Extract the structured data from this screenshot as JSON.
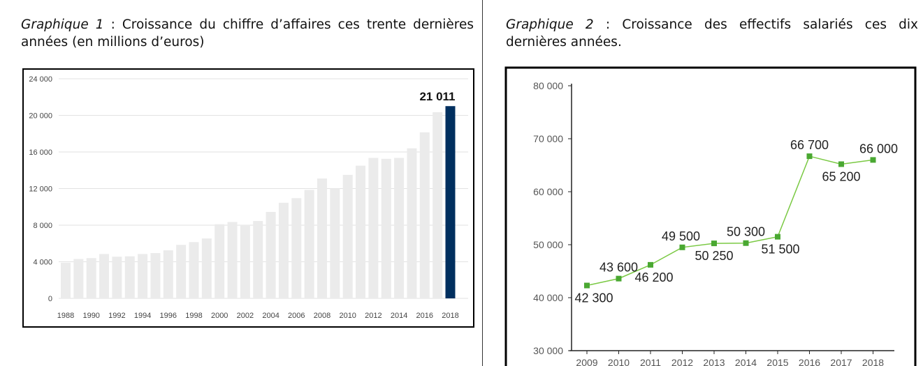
{
  "captions": {
    "chart1": {
      "prefix": "Graphique 1",
      "text": " : Croissance du chiffre d’affaires ces trente dernières années (en millions d’euros)"
    },
    "chart2": {
      "prefix": "Graphique 2",
      "text": " : Croissance des effectifs salariés ces dix dernières années."
    }
  },
  "chart_data": [
    {
      "type": "bar",
      "categories": [
        1988,
        1989,
        1990,
        1991,
        1992,
        1993,
        1994,
        1995,
        1996,
        1997,
        1998,
        1999,
        2000,
        2001,
        2002,
        2003,
        2004,
        2005,
        2006,
        2007,
        2008,
        2009,
        2010,
        2011,
        2012,
        2013,
        2014,
        2015,
        2016,
        2017,
        2018
      ],
      "values": [
        3900,
        4300,
        4400,
        4850,
        4550,
        4600,
        4850,
        4950,
        5250,
        5850,
        6150,
        6550,
        8100,
        8350,
        8050,
        8450,
        9450,
        10450,
        10950,
        11850,
        13100,
        12000,
        13500,
        14500,
        15350,
        15250,
        15350,
        16400,
        18150,
        20350,
        21011
      ],
      "x_tick_labels": [
        "1988",
        "1990",
        "1992",
        "1994",
        "1996",
        "1998",
        "2000",
        "2002",
        "2004",
        "2006",
        "2008",
        "2010",
        "2012",
        "2014",
        "2016",
        "2018"
      ],
      "y_tick_labels": [
        "0",
        "4 000",
        "8 000",
        "12 000",
        "16 000",
        "20 000",
        "24 000"
      ],
      "ylim": [
        0,
        24000
      ],
      "grid": true,
      "highlight": {
        "category": 2018,
        "label": "21 011",
        "color": "#002f5f"
      },
      "bar_color": "#ebebeb"
    },
    {
      "type": "line",
      "x": [
        2009,
        2010,
        2011,
        2012,
        2013,
        2014,
        2015,
        2016,
        2017,
        2018
      ],
      "values": [
        42300,
        43600,
        46200,
        49500,
        50250,
        50300,
        51500,
        66700,
        65200,
        66000
      ],
      "data_labels": [
        "42 300",
        "43 600",
        "46 200",
        "49 500",
        "50 250",
        "50 300",
        "51 500",
        "66 700",
        "65 200",
        "66 000"
      ],
      "x_tick_labels": [
        "2009",
        "2010",
        "2011",
        "2012",
        "2013",
        "2014",
        "2015",
        "2016",
        "2017",
        "2018"
      ],
      "y_tick_labels": [
        "30 000",
        "40 000",
        "50 000",
        "60 000",
        "70 000",
        "80 000"
      ],
      "ylim": [
        30000,
        80000
      ],
      "grid": false,
      "line_color": "#7ac943",
      "marker_color": "#4aa832"
    }
  ]
}
